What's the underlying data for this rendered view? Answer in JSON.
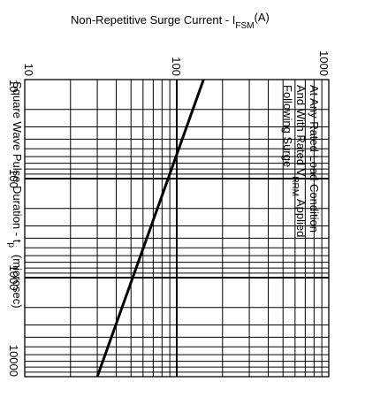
{
  "chart_data": {
    "type": "line",
    "title_main": "Non-Repetitive Surge Current - I",
    "title_sub": "FSM",
    "title_unit": "(A)",
    "side_label_main": "Square Wave Pulse Duration - t",
    "side_label_sub": "p",
    "side_label_unit": "(microsec)",
    "current_axis": {
      "scale": "log",
      "range": [
        10,
        1000
      ],
      "ticks": [
        10,
        100,
        1000
      ],
      "tick_labels": [
        "10",
        "100",
        "1000"
      ]
    },
    "duration_axis": {
      "scale": "log",
      "range": [
        10,
        10000
      ],
      "ticks": [
        10,
        100,
        1000,
        10000
      ],
      "tick_labels": [
        "10",
        "100",
        "1000",
        "10000"
      ]
    },
    "grid": true,
    "annotation_lines": [
      {
        "main": "At Any Rated Load Condition",
        "sub": "",
        "rest": ""
      },
      {
        "main": "And With Rated V",
        "sub": "RRM",
        "rest": " Applied"
      },
      {
        "main": "Following Surge",
        "sub": "",
        "rest": ""
      }
    ],
    "series": [
      {
        "points": [
          {
            "duration_us": 10,
            "current_A": 150
          },
          {
            "duration_us": 10000,
            "current_A": 30
          }
        ]
      }
    ],
    "line_color": "#000000"
  }
}
